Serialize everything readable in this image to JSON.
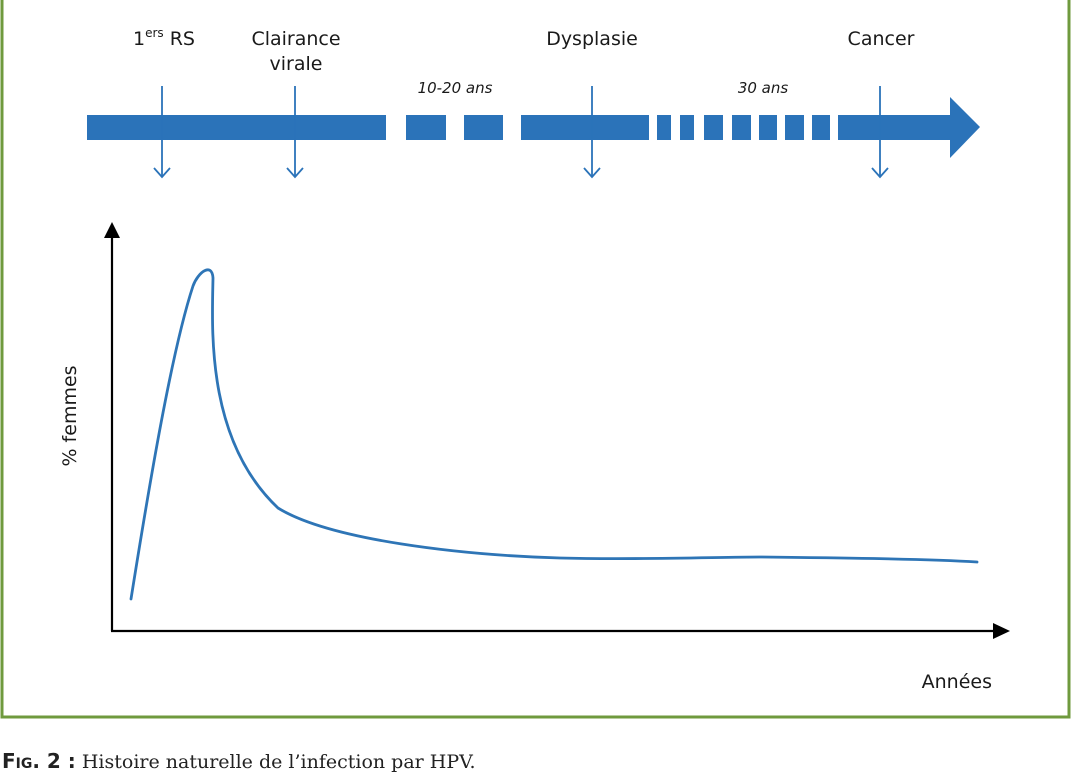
{
  "colors": {
    "frame_border": "#6f9a3e",
    "timeline_blue": "#2b73b9",
    "curve_blue": "#2e75b6",
    "axis_black": "#000000"
  },
  "timeline": {
    "stages": [
      {
        "id": "rs",
        "label": "1",
        "superscript": "ers",
        "suffix": " RS"
      },
      {
        "id": "clairance",
        "label_line1": "Clairance",
        "label_line2": "virale"
      },
      {
        "id": "dysplasie",
        "label": "Dysplasie"
      },
      {
        "id": "cancer",
        "label": "Cancer"
      }
    ],
    "durations": [
      {
        "id": "d1",
        "label": "10-20 ans"
      },
      {
        "id": "d2",
        "label": "30 ans"
      }
    ]
  },
  "graph": {
    "y_label": "% femmes",
    "x_label": "Années"
  },
  "caption": {
    "label": "Fig. 2 :",
    "text": " Histoire naturelle de l’infection par HPV."
  }
}
